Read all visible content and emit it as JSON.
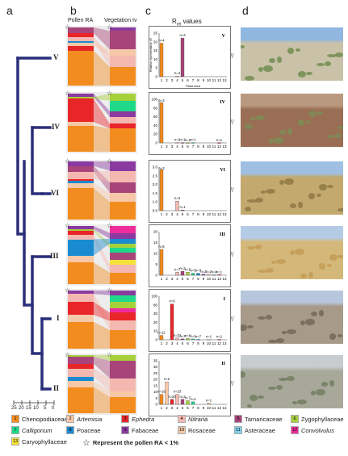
{
  "panels": {
    "a": "a",
    "b": "b",
    "c": "c",
    "d": "d"
  },
  "column_titles": {
    "pollen": "Pollen RA",
    "vegetation": "Vegetation Iv",
    "rvalues": "R",
    "rvalues_sub": "rel",
    "rvalues_suffix": " values"
  },
  "dendrogram": {
    "clusters": [
      "V",
      "IV",
      "VI",
      "III",
      "I",
      "II"
    ],
    "scale_ticks": [
      "25",
      "20",
      "15",
      "10",
      "5",
      "0"
    ]
  },
  "colors": {
    "Chenopodiaceae": "#f28c1e",
    "Artemisia": "#f7c8a8",
    "Ephedra": "#e8262a",
    "Nitraria": "#f5b8b0",
    "Tamaricaceae": "#a8447a",
    "Zygophyllaceae": "#a6d13a",
    "Calligonum": "#1fd88a",
    "Poaceae": "#1b8bd1",
    "Fabaceae": "#8a3aa0",
    "Rosaceae": "#f2c7a5",
    "Asteraceae": "#7fd0ea",
    "Convolvulus": "#ee2c9c",
    "Caryophyllaceae": "#f4e23a"
  },
  "legend": {
    "items": [
      {
        "n": "1",
        "label": "Chenopodiaceae",
        "italic": false,
        "key": "Chenopodiaceae"
      },
      {
        "n": "2",
        "label": "Artemisia",
        "italic": true,
        "key": "Artemisia"
      },
      {
        "n": "3",
        "label": "Ephedra",
        "italic": true,
        "key": "Ephedra"
      },
      {
        "n": "4",
        "label": "Nitraria",
        "italic": true,
        "key": "Nitraria"
      },
      {
        "n": "5",
        "label": "Tamaricaceae",
        "italic": false,
        "key": "Tamaricaceae"
      },
      {
        "n": "6",
        "label": "Zygophyllaceae",
        "italic": false,
        "key": "Zygophyllaceae"
      },
      {
        "n": "7",
        "label": "Calligonum",
        "italic": true,
        "key": "Calligonum"
      },
      {
        "n": "8",
        "label": "Poaceae",
        "italic": false,
        "key": "Poaceae"
      },
      {
        "n": "9",
        "label": "Fabaceae",
        "italic": false,
        "key": "Fabaceae"
      },
      {
        "n": "10",
        "label": "Rosaceae",
        "italic": false,
        "key": "Rosaceae"
      },
      {
        "n": "11",
        "label": "Asteraceae",
        "italic": false,
        "key": "Asteraceae"
      },
      {
        "n": "12",
        "label": "Convolvulus",
        "italic": true,
        "key": "Convolvulus"
      },
      {
        "n": "13",
        "label": "Caryophyllaceae",
        "italic": false,
        "key": "Caryophyllaceae"
      }
    ],
    "star_note": "Represent the pollen RA < 1%"
  },
  "groups": [
    {
      "cluster": "V",
      "pollen": [
        [
          "Tamaricaceae",
          10
        ],
        [
          "Ephedra",
          6
        ],
        [
          "Nitraria",
          8
        ],
        [
          "Poaceae",
          2
        ],
        [
          "Artemisia",
          6
        ],
        [
          "Ephedra",
          8
        ],
        [
          "Chenopodiaceae",
          60
        ]
      ],
      "vegetation": [
        [
          "Fabaceae",
          6
        ],
        [
          "Tamaricaceae",
          32
        ],
        [
          "Artemisia",
          10
        ],
        [
          "Nitraria",
          20
        ],
        [
          "Chenopodiaceae",
          32
        ]
      ]
    },
    {
      "cluster": "IV",
      "pollen": [
        [
          "Fabaceae",
          6
        ],
        [
          "Zygophyllaceae",
          3
        ],
        [
          "Ephedra",
          40
        ],
        [
          "Artemisia",
          6
        ],
        [
          "Chenopodiaceae",
          45
        ]
      ],
      "vegetation": [
        [
          "Zygophyllaceae",
          12
        ],
        [
          "Calligonum",
          18
        ],
        [
          "Fabaceae",
          10
        ],
        [
          "Nitraria",
          12
        ],
        [
          "Ephedra",
          8
        ],
        [
          "Chenopodiaceae",
          40
        ]
      ]
    },
    {
      "cluster": "VI",
      "pollen": [
        [
          "Fabaceae",
          8
        ],
        [
          "Tamaricaceae",
          10
        ],
        [
          "Nitraria",
          12
        ],
        [
          "Ephedra",
          4
        ],
        [
          "Poaceae",
          4
        ],
        [
          "Artemisia",
          8
        ],
        [
          "Chenopodiaceae",
          54
        ]
      ],
      "vegetation": [
        [
          "Fabaceae",
          16
        ],
        [
          "Nitraria",
          20
        ],
        [
          "Tamaricaceae",
          18
        ],
        [
          "Artemisia",
          16
        ],
        [
          "Chenopodiaceae",
          30
        ]
      ]
    },
    {
      "cluster": "III",
      "pollen": [
        [
          "Fabaceae",
          6
        ],
        [
          "Zygophyllaceae",
          3
        ],
        [
          "Ephedra",
          6
        ],
        [
          "Nitraria",
          8
        ],
        [
          "Poaceae",
          28
        ],
        [
          "Artemisia",
          12
        ],
        [
          "Chenopodiaceae",
          37
        ]
      ],
      "vegetation": [
        [
          "Convolvulus",
          12
        ],
        [
          "Fabaceae",
          10
        ],
        [
          "Poaceae",
          8
        ],
        [
          "Zygophyllaceae",
          8
        ],
        [
          "Calligonum",
          8
        ],
        [
          "Tamaricaceae",
          12
        ],
        [
          "Caryophyllaceae",
          8
        ],
        [
          "Nitraria",
          14
        ],
        [
          "Chenopodiaceae",
          20
        ]
      ]
    },
    {
      "cluster": "I",
      "pollen": [
        [
          "Fabaceae",
          6
        ],
        [
          "Nitraria",
          14
        ],
        [
          "Ephedra",
          22
        ],
        [
          "Artemisia",
          12
        ],
        [
          "Chenopodiaceae",
          46
        ]
      ],
      "vegetation": [
        [
          "Fabaceae",
          8
        ],
        [
          "Calligonum",
          12
        ],
        [
          "Zygophyllaceae",
          10
        ],
        [
          "Convolvulus",
          8
        ],
        [
          "Ephedra",
          14
        ],
        [
          "Nitraria",
          16
        ],
        [
          "Chenopodiaceae",
          32
        ]
      ]
    },
    {
      "cluster": "II",
      "pollen": [
        [
          "Zygophyllaceae",
          3
        ],
        [
          "Tamaricaceae",
          12
        ],
        [
          "Ephedra",
          8
        ],
        [
          "Nitraria",
          14
        ],
        [
          "Poaceae",
          8
        ],
        [
          "Artemisia",
          10
        ],
        [
          "Chenopodiaceae",
          45
        ]
      ],
      "vegetation": [
        [
          "Zygophyllaceae",
          10
        ],
        [
          "Tamaricaceae",
          30
        ],
        [
          "Nitraria",
          22
        ],
        [
          "Artemisia",
          10
        ],
        [
          "Chenopodiaceae",
          28
        ]
      ]
    }
  ],
  "chart_data": [
    {
      "type": "bar",
      "cluster": "V",
      "ylabel": "Relative representation (R",
      "xlabel": "Plant taxa",
      "yticks": [
        "0",
        "5",
        "10",
        "15",
        "20",
        "25"
      ],
      "ylim": [
        0,
        26
      ],
      "x": [
        "1",
        "2",
        "3",
        "4",
        "5",
        "6",
        "7",
        "8",
        "9",
        "10",
        "11",
        "12",
        "13"
      ],
      "bars": [
        {
          "x": 1,
          "value": 20,
          "label": "n=4",
          "color": "Chenopodiaceae"
        },
        {
          "x": 5,
          "value": 23,
          "label": "n=3",
          "color": "Tamaricaceae"
        },
        {
          "x": 4,
          "value": 0.4,
          "label": "n=4",
          "color": "Nitraria"
        }
      ]
    },
    {
      "type": "bar",
      "cluster": "IV",
      "yticks": [
        "0",
        "20",
        "40",
        "60",
        "80",
        "100"
      ],
      "ylim": [
        0,
        100
      ],
      "x": [
        "1",
        "2",
        "3",
        "4",
        "5",
        "6",
        "7",
        "8",
        "9",
        "10",
        "11",
        "12",
        "13"
      ],
      "bars": [
        {
          "x": 1,
          "value": 92,
          "label": "n=3",
          "color": "Chenopodiaceae"
        },
        {
          "x": 4,
          "value": 0.5,
          "label": "n=2",
          "color": "Nitraria"
        },
        {
          "x": 5,
          "value": 0.5,
          "label": "n=1",
          "color": "Tamaricaceae"
        },
        {
          "x": 6,
          "value": 0.3,
          "label": "n=2",
          "color": "Zygophyllaceae"
        },
        {
          "x": 7,
          "value": 0.5,
          "label": "n=1",
          "color": "Calligonum"
        },
        {
          "x": 12,
          "value": 0.3,
          "label": "n=1",
          "color": "Convolvulus"
        }
      ]
    },
    {
      "type": "bar",
      "cluster": "VI",
      "yticks": [
        "0.5",
        "1.0",
        "1.5",
        "2.0",
        "2.5",
        "3.0"
      ],
      "ylim": [
        0,
        3.2
      ],
      "x": [
        "1",
        "2",
        "3",
        "4",
        "5",
        "6",
        "7",
        "8",
        "9",
        "10",
        "11",
        "12",
        "13"
      ],
      "bars": [
        {
          "x": 1,
          "value": 3.0,
          "label": "n=3",
          "color": "Chenopodiaceae"
        },
        {
          "x": 4,
          "value": 0.7,
          "label": "n=3",
          "color": "Nitraria"
        },
        {
          "x": 5,
          "value": 0.05,
          "label": "n=1",
          "color": "Tamaricaceae"
        }
      ]
    },
    {
      "type": "bar",
      "cluster": "III",
      "yticks": [
        "0",
        "5",
        "10",
        "15",
        "20"
      ],
      "ylim": [
        0,
        22
      ],
      "x": [
        "1",
        "2",
        "3",
        "4",
        "5",
        "6",
        "7",
        "8",
        "9",
        "10",
        "11",
        "12",
        "13"
      ],
      "bars": [
        {
          "x": 1,
          "value": 13,
          "label": "n=6",
          "color": "Chenopodiaceae"
        },
        {
          "x": 4,
          "value": 1.5,
          "label": "n=7",
          "color": "Nitraria"
        },
        {
          "x": 5,
          "value": 2.0,
          "label": "n=3",
          "color": "Tamaricaceae"
        },
        {
          "x": 6,
          "value": 1.5,
          "label": "n=5",
          "color": "Zygophyllaceae"
        },
        {
          "x": 7,
          "value": 1,
          "label": "n=3",
          "color": "Calligonum"
        },
        {
          "x": 8,
          "value": 1,
          "label": "n=3",
          "color": "Poaceae"
        },
        {
          "x": 9,
          "value": 0.5,
          "label": "n=2",
          "color": "Fabaceae"
        },
        {
          "x": 10,
          "value": 0.5,
          "label": "n=2",
          "color": "Rosaceae"
        },
        {
          "x": 11,
          "value": 0.3,
          "label": "n=4",
          "color": "Asteraceae"
        },
        {
          "x": 12,
          "value": 0.3,
          "label": "n=1",
          "color": "Convolvulus"
        }
      ]
    },
    {
      "type": "bar",
      "cluster": "I",
      "yticks": [
        "0",
        "10",
        "20",
        "30",
        "80",
        "100"
      ],
      "ylim": [
        0,
        100
      ],
      "x": [
        "1",
        "2",
        "3",
        "4",
        "5",
        "6",
        "7",
        "8",
        "9",
        "10",
        "11",
        "12",
        "13"
      ],
      "bars": [
        {
          "x": 1,
          "value": 10,
          "label": "n=12",
          "color": "Chenopodiaceae"
        },
        {
          "x": 3,
          "value": 82,
          "label": "n=9",
          "color": "Ephedra"
        },
        {
          "x": 4,
          "value": 4,
          "label": "n=31",
          "color": "Nitraria"
        },
        {
          "x": 5,
          "value": 2,
          "label": "n=3",
          "color": "Tamaricaceae"
        },
        {
          "x": 6,
          "value": 3,
          "label": "n=6",
          "color": "Zygophyllaceae"
        },
        {
          "x": 7,
          "value": 2,
          "label": "n=1",
          "color": "Calligonum"
        },
        {
          "x": 8,
          "value": 1,
          "label": "n=7",
          "color": "Poaceae"
        },
        {
          "x": 10,
          "value": 1,
          "label": "n=1",
          "color": "Rosaceae"
        },
        {
          "x": 12,
          "value": 1,
          "label": "n=1",
          "color": "Convolvulus"
        }
      ]
    },
    {
      "type": "bar",
      "cluster": "II",
      "yticks": [
        "0",
        "5",
        "10",
        "15",
        "20",
        "25",
        "30",
        "35"
      ],
      "ylim": [
        0,
        35
      ],
      "x": [
        "1",
        "2",
        "3",
        "4",
        "5",
        "6",
        "7",
        "8",
        "9",
        "10",
        "11",
        "12",
        "13"
      ],
      "bars": [
        {
          "x": 1,
          "value": 8,
          "label": "n=19",
          "color": "Chenopodiaceae"
        },
        {
          "x": 2,
          "value": 18,
          "label": "n=2",
          "color": "Artemisia"
        },
        {
          "x": 3,
          "value": 4,
          "label": "n=20",
          "color": "Ephedra"
        },
        {
          "x": 4,
          "value": 8,
          "label": "n=23",
          "color": "Nitraria"
        },
        {
          "x": 5,
          "value": 4,
          "label": "n=3",
          "color": "Tamaricaceae"
        },
        {
          "x": 6,
          "value": 3,
          "label": "n=7",
          "color": "Zygophyllaceae"
        },
        {
          "x": 7,
          "value": 2,
          "label": "n=4",
          "color": "Calligonum"
        },
        {
          "x": 10,
          "value": 1,
          "label": "n=1",
          "color": "Rosaceae"
        }
      ]
    }
  ]
}
